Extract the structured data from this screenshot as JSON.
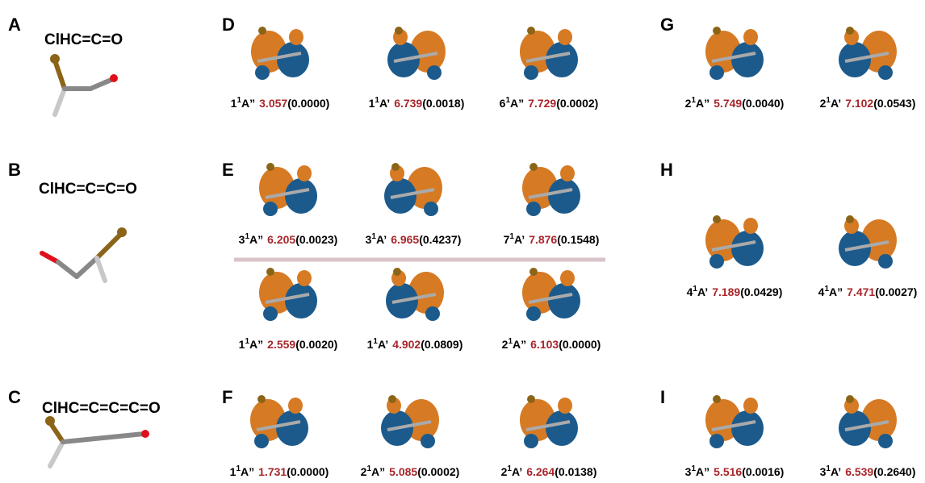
{
  "panels": [
    {
      "label": "A",
      "molecule": "ClHC=C=O"
    },
    {
      "label": "B",
      "molecule": "ClHC=C=C=O"
    },
    {
      "label": "C",
      "molecule": "ClHC=C=C=C=O"
    },
    {
      "label": "D",
      "rows": [
        [
          {
            "n": "1",
            "sup": "1",
            "sym": "A”",
            "energy": "3.057",
            "osc": "(0.0000)"
          },
          {
            "n": "1",
            "sup": "1",
            "sym": "A’",
            "energy": "6.739",
            "osc": "(0.0018)"
          },
          {
            "n": "6",
            "sup": "1",
            "sym": "A”",
            "energy": "7.729",
            "osc": "(0.0002)"
          }
        ]
      ]
    },
    {
      "label": "E",
      "rows": [
        [
          {
            "n": "3",
            "sup": "1",
            "sym": "A”",
            "energy": "6.205",
            "osc": "(0.0023)"
          },
          {
            "n": "3",
            "sup": "1",
            "sym": "A’",
            "energy": "6.965",
            "osc": "(0.4237)"
          },
          {
            "n": "7",
            "sup": "1",
            "sym": "A’",
            "energy": "7.876",
            "osc": "(0.1548)"
          }
        ],
        [
          {
            "n": "1",
            "sup": "1",
            "sym": "A”",
            "energy": "2.559",
            "osc": "(0.0020)"
          },
          {
            "n": "1",
            "sup": "1",
            "sym": "A’",
            "energy": "4.902",
            "osc": "(0.0809)"
          },
          {
            "n": "2",
            "sup": "1",
            "sym": "A”",
            "energy": "6.103",
            "osc": "(0.0000)"
          }
        ]
      ]
    },
    {
      "label": "F",
      "rows": [
        [
          {
            "n": "1",
            "sup": "1",
            "sym": "A”",
            "energy": "1.731",
            "osc": "(0.0000)"
          },
          {
            "n": "2",
            "sup": "1",
            "sym": "A”",
            "energy": "5.085",
            "osc": "(0.0002)"
          },
          {
            "n": "2",
            "sup": "1",
            "sym": "A’",
            "energy": "6.264",
            "osc": "(0.0138)"
          }
        ]
      ]
    },
    {
      "label": "G",
      "rows": [
        [
          {
            "n": "2",
            "sup": "1",
            "sym": "A”",
            "energy": "5.749",
            "osc": "(0.0040)"
          },
          {
            "n": "2",
            "sup": "1",
            "sym": "A’",
            "energy": "7.102",
            "osc": "(0.0543)"
          }
        ]
      ]
    },
    {
      "label": "H",
      "rows": [
        [
          {
            "n": "4",
            "sup": "1",
            "sym": "A’",
            "energy": "7.189",
            "osc": "(0.0429)"
          },
          {
            "n": "4",
            "sup": "1",
            "sym": "A”",
            "energy": "7.471",
            "osc": "(0.0027)"
          }
        ]
      ]
    },
    {
      "label": "I",
      "rows": [
        [
          {
            "n": "3",
            "sup": "1",
            "sym": "A”",
            "energy": "5.516",
            "osc": "(0.0016)"
          },
          {
            "n": "3",
            "sup": "1",
            "sym": "A’",
            "energy": "6.539",
            "osc": "(0.2640)"
          }
        ]
      ]
    }
  ]
}
